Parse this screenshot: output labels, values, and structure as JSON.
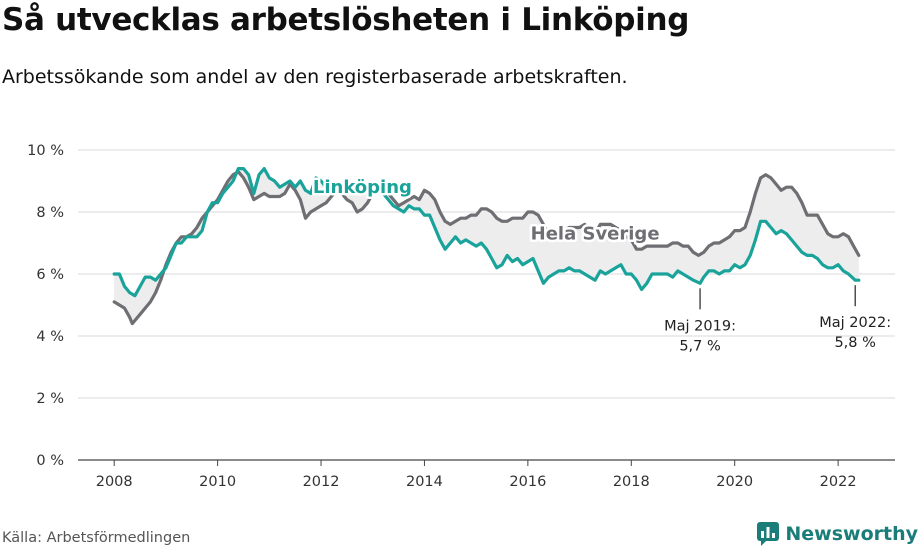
{
  "header": {
    "title": "Så utvecklas arbetslösheten i Linköping",
    "subtitle": "Arbetssökande som andel av den registerbaserade arbetskraften."
  },
  "footer": {
    "source": "Källa: Arbetsförmedlingen",
    "brand": "Newsworthy",
    "brand_icon": "newsworthy-logo-icon",
    "brand_color": "#1a7d7a"
  },
  "chart_data": {
    "type": "line",
    "x_ticks": [
      2008,
      2010,
      2012,
      2014,
      2016,
      2018,
      2020,
      2022
    ],
    "y_ticks": [
      0,
      2,
      4,
      6,
      8,
      10
    ],
    "y_tick_labels": [
      "0 %",
      "2 %",
      "4 %",
      "6 %",
      "8 %",
      "10 %"
    ],
    "xlim": [
      2007.3,
      2023.1
    ],
    "ylim": [
      0,
      10
    ],
    "grid": "horizontal",
    "area_between_series": true,
    "series": [
      {
        "name": "Linköping",
        "color": "#1aa39a",
        "points": [
          [
            2008.0,
            6.0
          ],
          [
            2008.1,
            6.0
          ],
          [
            2008.2,
            5.6
          ],
          [
            2008.3,
            5.4
          ],
          [
            2008.4,
            5.3
          ],
          [
            2008.5,
            5.6
          ],
          [
            2008.6,
            5.9
          ],
          [
            2008.7,
            5.9
          ],
          [
            2008.8,
            5.8
          ],
          [
            2008.9,
            6.0
          ],
          [
            2009.0,
            6.2
          ],
          [
            2009.1,
            6.6
          ],
          [
            2009.2,
            7.0
          ],
          [
            2009.3,
            7.0
          ],
          [
            2009.4,
            7.2
          ],
          [
            2009.5,
            7.2
          ],
          [
            2009.6,
            7.2
          ],
          [
            2009.7,
            7.4
          ],
          [
            2009.8,
            8.0
          ],
          [
            2009.9,
            8.3
          ],
          [
            2010.0,
            8.3
          ],
          [
            2010.1,
            8.6
          ],
          [
            2010.2,
            8.8
          ],
          [
            2010.3,
            9.0
          ],
          [
            2010.4,
            9.4
          ],
          [
            2010.5,
            9.4
          ],
          [
            2010.6,
            9.2
          ],
          [
            2010.7,
            8.6
          ],
          [
            2010.8,
            9.2
          ],
          [
            2010.9,
            9.4
          ],
          [
            2011.0,
            9.1
          ],
          [
            2011.1,
            9.0
          ],
          [
            2011.2,
            8.8
          ],
          [
            2011.3,
            8.9
          ],
          [
            2011.4,
            9.0
          ],
          [
            2011.5,
            8.8
          ],
          [
            2011.6,
            9.0
          ],
          [
            2011.7,
            8.7
          ],
          [
            2011.8,
            8.6
          ],
          [
            2011.9,
            9.1
          ],
          [
            2012.0,
            9.0
          ],
          [
            2012.1,
            8.8
          ],
          [
            2012.2,
            8.9
          ],
          [
            2012.3,
            8.8
          ],
          [
            2012.4,
            8.8
          ],
          [
            2012.5,
            8.7
          ],
          [
            2012.6,
            8.6
          ],
          [
            2012.7,
            8.7
          ],
          [
            2012.8,
            8.8
          ],
          [
            2012.9,
            8.9
          ],
          [
            2013.0,
            8.8
          ],
          [
            2013.1,
            8.7
          ],
          [
            2013.2,
            8.6
          ],
          [
            2013.3,
            8.4
          ],
          [
            2013.4,
            8.2
          ],
          [
            2013.5,
            8.1
          ],
          [
            2013.6,
            8.0
          ],
          [
            2013.7,
            8.2
          ],
          [
            2013.8,
            8.1
          ],
          [
            2013.9,
            8.1
          ],
          [
            2014.0,
            7.9
          ],
          [
            2014.1,
            7.9
          ],
          [
            2014.2,
            7.5
          ],
          [
            2014.3,
            7.1
          ],
          [
            2014.4,
            6.8
          ],
          [
            2014.5,
            7.0
          ],
          [
            2014.6,
            7.2
          ],
          [
            2014.7,
            7.0
          ],
          [
            2014.8,
            7.1
          ],
          [
            2014.9,
            7.0
          ],
          [
            2015.0,
            6.9
          ],
          [
            2015.1,
            7.0
          ],
          [
            2015.2,
            6.8
          ],
          [
            2015.3,
            6.5
          ],
          [
            2015.4,
            6.2
          ],
          [
            2015.5,
            6.3
          ],
          [
            2015.6,
            6.6
          ],
          [
            2015.7,
            6.4
          ],
          [
            2015.8,
            6.5
          ],
          [
            2015.9,
            6.3
          ],
          [
            2016.0,
            6.4
          ],
          [
            2016.1,
            6.5
          ],
          [
            2016.2,
            6.1
          ],
          [
            2016.3,
            5.7
          ],
          [
            2016.4,
            5.9
          ],
          [
            2016.5,
            6.0
          ],
          [
            2016.6,
            6.1
          ],
          [
            2016.7,
            6.1
          ],
          [
            2016.8,
            6.2
          ],
          [
            2016.9,
            6.1
          ],
          [
            2017.0,
            6.1
          ],
          [
            2017.1,
            6.0
          ],
          [
            2017.2,
            5.9
          ],
          [
            2017.3,
            5.8
          ],
          [
            2017.4,
            6.1
          ],
          [
            2017.5,
            6.0
          ],
          [
            2017.6,
            6.1
          ],
          [
            2017.7,
            6.2
          ],
          [
            2017.8,
            6.3
          ],
          [
            2017.9,
            6.0
          ],
          [
            2018.0,
            6.0
          ],
          [
            2018.1,
            5.8
          ],
          [
            2018.2,
            5.5
          ],
          [
            2018.3,
            5.7
          ],
          [
            2018.4,
            6.0
          ],
          [
            2018.5,
            6.0
          ],
          [
            2018.6,
            6.0
          ],
          [
            2018.7,
            6.0
          ],
          [
            2018.8,
            5.9
          ],
          [
            2018.9,
            6.1
          ],
          [
            2019.0,
            6.0
          ],
          [
            2019.1,
            5.9
          ],
          [
            2019.2,
            5.8
          ],
          [
            2019.33,
            5.7
          ],
          [
            2019.4,
            5.9
          ],
          [
            2019.5,
            6.1
          ],
          [
            2019.6,
            6.1
          ],
          [
            2019.7,
            6.0
          ],
          [
            2019.8,
            6.1
          ],
          [
            2019.9,
            6.1
          ],
          [
            2020.0,
            6.3
          ],
          [
            2020.1,
            6.2
          ],
          [
            2020.2,
            6.3
          ],
          [
            2020.3,
            6.6
          ],
          [
            2020.4,
            7.1
          ],
          [
            2020.5,
            7.7
          ],
          [
            2020.6,
            7.7
          ],
          [
            2020.7,
            7.5
          ],
          [
            2020.8,
            7.3
          ],
          [
            2020.9,
            7.4
          ],
          [
            2021.0,
            7.3
          ],
          [
            2021.1,
            7.1
          ],
          [
            2021.2,
            6.9
          ],
          [
            2021.3,
            6.7
          ],
          [
            2021.4,
            6.6
          ],
          [
            2021.5,
            6.6
          ],
          [
            2021.6,
            6.5
          ],
          [
            2021.7,
            6.3
          ],
          [
            2021.8,
            6.2
          ],
          [
            2021.9,
            6.2
          ],
          [
            2022.0,
            6.3
          ],
          [
            2022.1,
            6.1
          ],
          [
            2022.2,
            6.0
          ],
          [
            2022.33,
            5.8
          ],
          [
            2022.4,
            5.8
          ]
        ]
      },
      {
        "name": "Hela Sverige",
        "color": "#6e6e73",
        "points": [
          [
            2008.0,
            5.1
          ],
          [
            2008.1,
            5.0
          ],
          [
            2008.2,
            4.9
          ],
          [
            2008.3,
            4.6
          ],
          [
            2008.35,
            4.4
          ],
          [
            2008.4,
            4.5
          ],
          [
            2008.5,
            4.7
          ],
          [
            2008.6,
            4.9
          ],
          [
            2008.7,
            5.1
          ],
          [
            2008.8,
            5.4
          ],
          [
            2008.9,
            5.8
          ],
          [
            2009.0,
            6.3
          ],
          [
            2009.1,
            6.7
          ],
          [
            2009.2,
            7.0
          ],
          [
            2009.3,
            7.2
          ],
          [
            2009.4,
            7.2
          ],
          [
            2009.5,
            7.3
          ],
          [
            2009.6,
            7.5
          ],
          [
            2009.7,
            7.8
          ],
          [
            2009.8,
            8.0
          ],
          [
            2009.9,
            8.2
          ],
          [
            2010.0,
            8.4
          ],
          [
            2010.1,
            8.7
          ],
          [
            2010.2,
            9.0
          ],
          [
            2010.3,
            9.2
          ],
          [
            2010.4,
            9.3
          ],
          [
            2010.5,
            9.1
          ],
          [
            2010.6,
            8.8
          ],
          [
            2010.7,
            8.4
          ],
          [
            2010.8,
            8.5
          ],
          [
            2010.9,
            8.6
          ],
          [
            2011.0,
            8.5
          ],
          [
            2011.1,
            8.5
          ],
          [
            2011.2,
            8.5
          ],
          [
            2011.3,
            8.6
          ],
          [
            2011.4,
            8.9
          ],
          [
            2011.5,
            8.7
          ],
          [
            2011.6,
            8.4
          ],
          [
            2011.7,
            7.8
          ],
          [
            2011.8,
            8.0
          ],
          [
            2011.9,
            8.1
          ],
          [
            2012.0,
            8.2
          ],
          [
            2012.1,
            8.3
          ],
          [
            2012.2,
            8.5
          ],
          [
            2012.3,
            8.7
          ],
          [
            2012.4,
            8.6
          ],
          [
            2012.5,
            8.4
          ],
          [
            2012.6,
            8.3
          ],
          [
            2012.7,
            8.0
          ],
          [
            2012.8,
            8.1
          ],
          [
            2012.9,
            8.3
          ],
          [
            2013.0,
            8.6
          ],
          [
            2013.1,
            8.8
          ],
          [
            2013.2,
            8.7
          ],
          [
            2013.3,
            8.6
          ],
          [
            2013.4,
            8.4
          ],
          [
            2013.5,
            8.2
          ],
          [
            2013.6,
            8.3
          ],
          [
            2013.7,
            8.4
          ],
          [
            2013.8,
            8.5
          ],
          [
            2013.9,
            8.4
          ],
          [
            2014.0,
            8.7
          ],
          [
            2014.1,
            8.6
          ],
          [
            2014.2,
            8.4
          ],
          [
            2014.3,
            8.0
          ],
          [
            2014.4,
            7.7
          ],
          [
            2014.5,
            7.6
          ],
          [
            2014.6,
            7.7
          ],
          [
            2014.7,
            7.8
          ],
          [
            2014.8,
            7.8
          ],
          [
            2014.9,
            7.9
          ],
          [
            2015.0,
            7.9
          ],
          [
            2015.1,
            8.1
          ],
          [
            2015.2,
            8.1
          ],
          [
            2015.3,
            8.0
          ],
          [
            2015.4,
            7.8
          ],
          [
            2015.5,
            7.7
          ],
          [
            2015.6,
            7.7
          ],
          [
            2015.7,
            7.8
          ],
          [
            2015.8,
            7.8
          ],
          [
            2015.9,
            7.8
          ],
          [
            2016.0,
            8.0
          ],
          [
            2016.1,
            8.0
          ],
          [
            2016.2,
            7.9
          ],
          [
            2016.3,
            7.6
          ],
          [
            2016.4,
            7.3
          ],
          [
            2016.5,
            7.3
          ],
          [
            2016.6,
            7.4
          ],
          [
            2016.7,
            7.4
          ],
          [
            2016.8,
            7.5
          ],
          [
            2016.9,
            7.5
          ],
          [
            2017.0,
            7.5
          ],
          [
            2017.1,
            7.6
          ],
          [
            2017.2,
            7.4
          ],
          [
            2017.3,
            7.3
          ],
          [
            2017.4,
            7.6
          ],
          [
            2017.5,
            7.6
          ],
          [
            2017.6,
            7.6
          ],
          [
            2017.7,
            7.5
          ],
          [
            2017.8,
            7.4
          ],
          [
            2017.9,
            7.2
          ],
          [
            2018.0,
            7.1
          ],
          [
            2018.1,
            6.8
          ],
          [
            2018.2,
            6.8
          ],
          [
            2018.3,
            6.9
          ],
          [
            2018.4,
            6.9
          ],
          [
            2018.5,
            6.9
          ],
          [
            2018.6,
            6.9
          ],
          [
            2018.7,
            6.9
          ],
          [
            2018.8,
            7.0
          ],
          [
            2018.9,
            7.0
          ],
          [
            2019.0,
            6.9
          ],
          [
            2019.1,
            6.9
          ],
          [
            2019.2,
            6.7
          ],
          [
            2019.3,
            6.6
          ],
          [
            2019.4,
            6.7
          ],
          [
            2019.5,
            6.9
          ],
          [
            2019.6,
            7.0
          ],
          [
            2019.7,
            7.0
          ],
          [
            2019.8,
            7.1
          ],
          [
            2019.9,
            7.2
          ],
          [
            2020.0,
            7.4
          ],
          [
            2020.1,
            7.4
          ],
          [
            2020.2,
            7.5
          ],
          [
            2020.3,
            8.0
          ],
          [
            2020.4,
            8.6
          ],
          [
            2020.5,
            9.1
          ],
          [
            2020.6,
            9.2
          ],
          [
            2020.7,
            9.1
          ],
          [
            2020.8,
            8.9
          ],
          [
            2020.9,
            8.7
          ],
          [
            2021.0,
            8.8
          ],
          [
            2021.1,
            8.8
          ],
          [
            2021.2,
            8.6
          ],
          [
            2021.3,
            8.3
          ],
          [
            2021.4,
            7.9
          ],
          [
            2021.5,
            7.9
          ],
          [
            2021.6,
            7.9
          ],
          [
            2021.7,
            7.6
          ],
          [
            2021.8,
            7.3
          ],
          [
            2021.9,
            7.2
          ],
          [
            2022.0,
            7.2
          ],
          [
            2022.1,
            7.3
          ],
          [
            2022.2,
            7.2
          ],
          [
            2022.3,
            6.9
          ],
          [
            2022.4,
            6.6
          ]
        ]
      }
    ],
    "series_labels": [
      {
        "text": "Linköping",
        "x": 2012.8,
        "y": 8.8,
        "color": "#1aa39a"
      },
      {
        "text": "Hela Sverige",
        "x": 2017.3,
        "y": 7.3,
        "color": "#6e6e73"
      }
    ],
    "annotations": [
      {
        "line1": "Maj 2019:",
        "line2": "5,7 %",
        "x": 2019.33,
        "y": 5.7
      },
      {
        "line1": "Maj 2022:",
        "line2": "5,8 %",
        "x": 2022.33,
        "y": 5.8
      }
    ]
  }
}
